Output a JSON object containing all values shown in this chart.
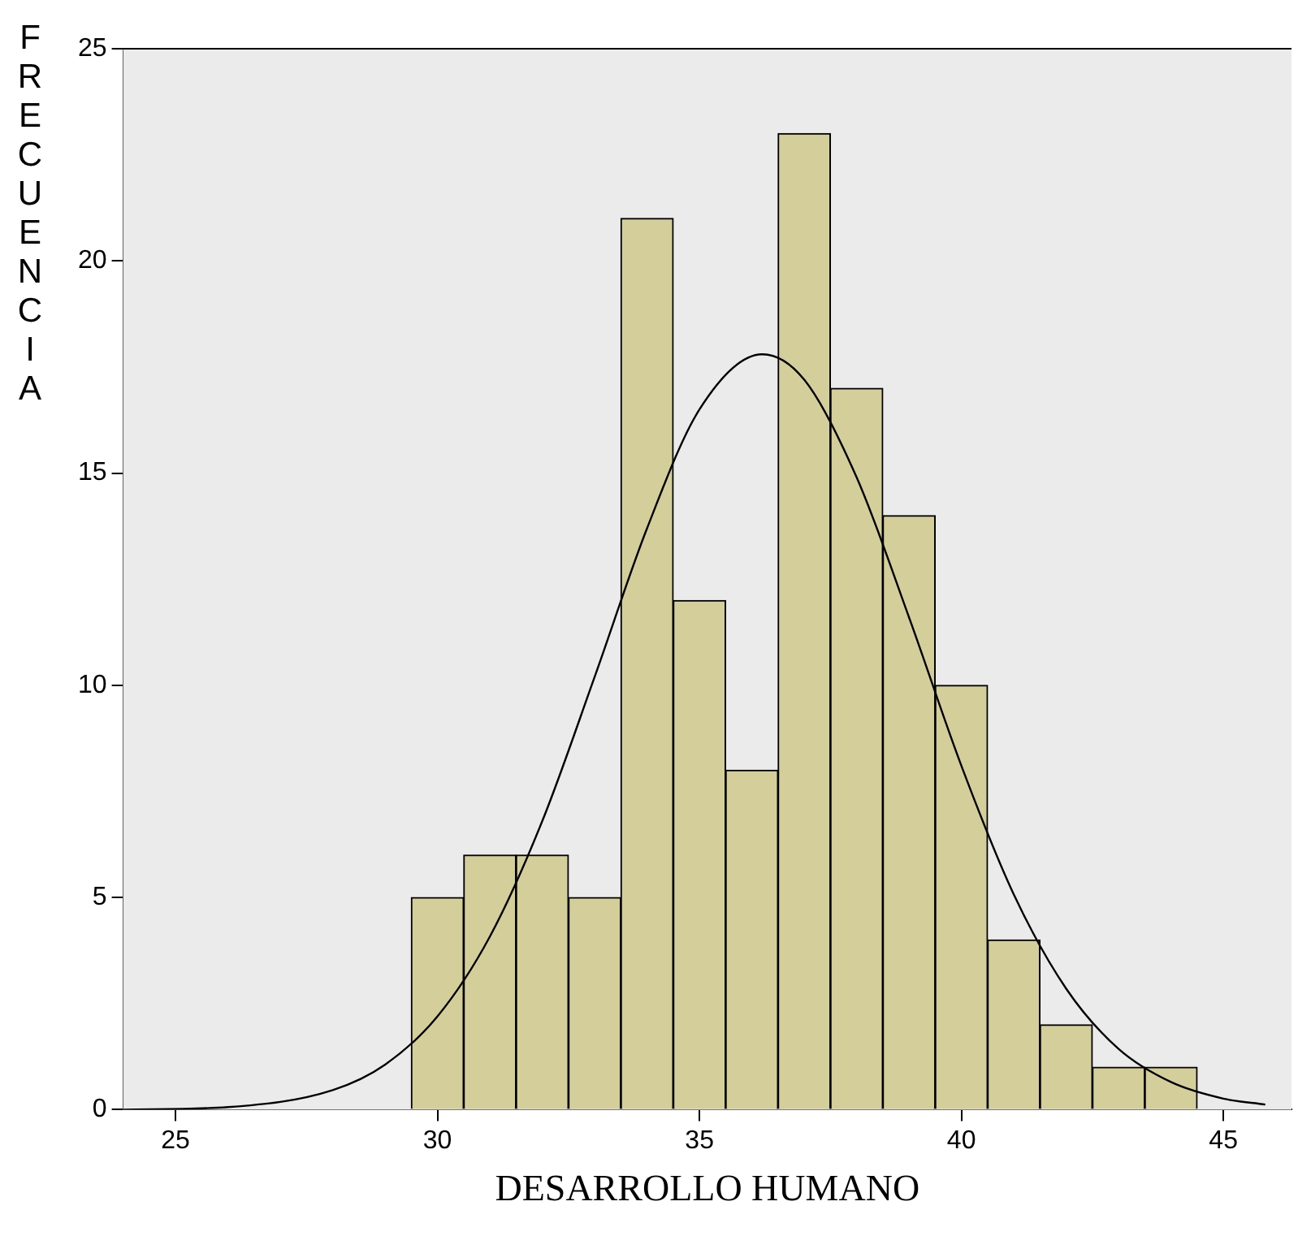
{
  "chart_data": {
    "type": "histogram",
    "xlabel": "DESARROLLO HUMANO",
    "ylabel": "FRECUENCIA",
    "bins": [
      29.5,
      30.5,
      31.5,
      32.5,
      33.5,
      34.5,
      35.5,
      36.5,
      37.5,
      38.5,
      39.5,
      40.5,
      41.5,
      42.5,
      43.5,
      44.5
    ],
    "values": [
      5,
      6,
      6,
      5,
      21,
      12,
      8,
      23,
      17,
      14,
      10,
      4,
      2,
      1,
      1
    ],
    "color": "#d4cf9a",
    "xlim": [
      24,
      46.3
    ],
    "ylim": [
      0,
      25
    ],
    "xticks": [
      25,
      30,
      35,
      40,
      45
    ],
    "yticks": [
      0,
      5,
      10,
      15,
      20,
      25
    ],
    "series": [
      {
        "type": "line",
        "color": "#000000",
        "x": [
          24,
          26,
          28,
          29,
          30,
          31,
          32,
          33,
          34,
          35,
          36.2,
          37,
          38,
          39,
          40,
          41,
          42,
          43,
          44,
          45,
          45.8
        ],
        "values": [
          0,
          0.06,
          0.46,
          1.06,
          2.2,
          4.08,
          6.8,
          10.2,
          13.7,
          16.5,
          17.8,
          17.2,
          14.9,
          11.6,
          8.1,
          5.07,
          2.85,
          1.43,
          0.65,
          0.26,
          0.12
        ]
      }
    ]
  }
}
